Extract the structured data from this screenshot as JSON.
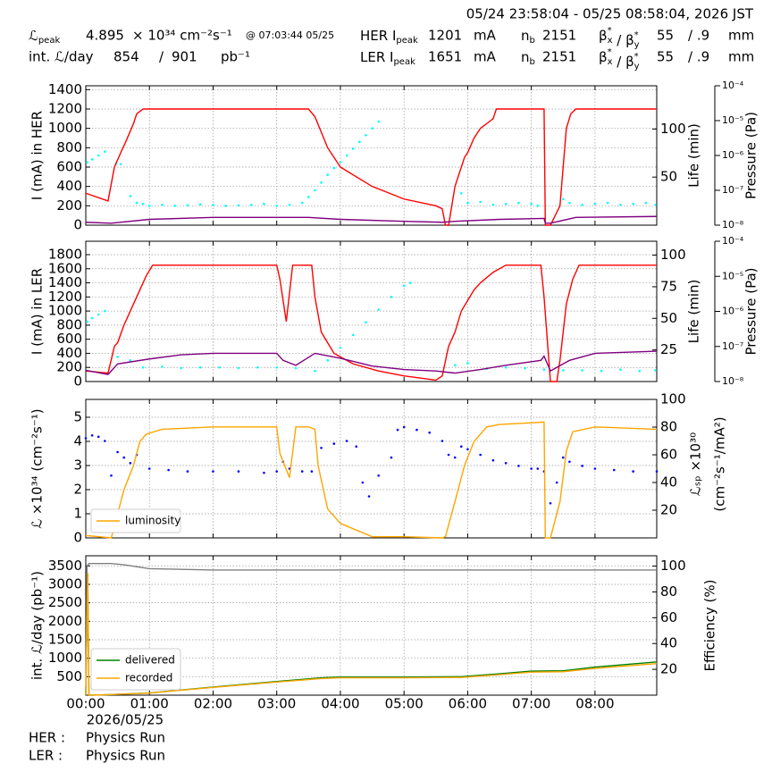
{
  "header": {
    "range": "05/24 23:58:04 - 05/25 08:58:04, 2026 JST",
    "row1": [
      {
        "text": "ℒ",
        "sub": "peak"
      },
      4.895,
      "× 10³⁴ cm⁻²s⁻¹",
      "@ 07:03:44 05/25",
      {
        "text": "HER I",
        "sub": "peak"
      },
      1201,
      "mA",
      {
        "text": "n",
        "sub": "b"
      },
      2151,
      [
        {
          "text": "β",
          "sup": "*",
          "sub": "x"
        },
        {
          "text": " / β",
          "sup": "*",
          "sub": "y"
        }
      ],
      55,
      "/ .9",
      "mm"
    ],
    "row2": [
      "int. ℒ/day",
      854,
      "/",
      901,
      "pb⁻¹",
      {
        "text": "LER I",
        "sub": "peak"
      },
      1651,
      "mA",
      {
        "text": "n",
        "sub": "b"
      },
      2151,
      [
        {
          "text": "β",
          "sup": "*",
          "sub": "x"
        },
        {
          "text": " / β",
          "sup": "*",
          "sub": "y"
        }
      ],
      55,
      "/ .9",
      "mm"
    ]
  },
  "chart_data": [
    {
      "type": "line",
      "ylabel": "I (mA) in HER",
      "y2label": "Life (min)",
      "y3label": "Pressure (Pa)",
      "xlim": [
        0,
        8.97
      ],
      "xticks": [
        0,
        1,
        2,
        3,
        4,
        5,
        6,
        7,
        8
      ],
      "ylim": [
        0,
        1440
      ],
      "yticks": [
        0,
        200,
        400,
        600,
        800,
        1000,
        1200,
        1400
      ],
      "y2lim": [
        0,
        145
      ],
      "y2ticks": [
        50,
        100
      ],
      "y3lim": [
        1e-08,
        0.0001
      ],
      "y3log": true,
      "y3ticks": [
        {
          "value": 1e-08,
          "label": "10⁻⁸"
        },
        {
          "value": 1e-07,
          "label": "10⁻⁷"
        },
        {
          "value": 1e-06,
          "label": "10⁻⁶"
        },
        {
          "value": 1e-05,
          "label": "10⁻⁵"
        },
        {
          "value": 0.0001,
          "label": "10⁻⁴"
        }
      ],
      "grid": true,
      "series": [
        {
          "type": "scatter",
          "color": "#00ffff",
          "x": [
            0.02,
            0.1,
            0.2,
            0.3,
            0.48,
            0.55,
            0.7,
            0.8,
            0.9,
            1.0,
            1.2,
            1.4,
            1.6,
            1.8,
            2.0,
            2.2,
            2.4,
            2.6,
            2.8,
            3.0,
            3.2,
            3.4,
            3.5,
            3.6,
            3.7,
            3.8,
            3.9,
            4.0,
            4.1,
            4.2,
            4.3,
            4.4,
            4.5,
            4.6,
            5.9,
            6.0,
            6.2,
            6.4,
            6.6,
            6.8,
            7.0,
            7.1,
            7.5,
            7.6,
            7.8,
            8.0,
            8.2,
            8.4,
            8.6,
            8.8,
            8.95
          ],
          "values": [
            650,
            680,
            720,
            760,
            640,
            630,
            300,
            230,
            220,
            200,
            210,
            200,
            205,
            215,
            210,
            200,
            205,
            210,
            220,
            200,
            210,
            230,
            290,
            360,
            440,
            520,
            590,
            650,
            720,
            790,
            860,
            930,
            1000,
            1070,
            330,
            230,
            240,
            210,
            220,
            230,
            220,
            200,
            270,
            230,
            210,
            220,
            230,
            210,
            220,
            230,
            210
          ]
        },
        {
          "color": "#ff0000",
          "x": [
            0,
            0.35,
            0.45,
            0.55,
            0.62,
            0.75,
            0.8,
            0.9,
            1.0,
            3.5,
            3.6,
            3.8,
            4.0,
            4.5,
            5.0,
            5.5,
            5.6,
            5.65,
            5.7,
            5.8,
            5.95,
            6.0,
            6.1,
            6.2,
            6.3,
            6.4,
            6.45,
            6.5,
            7.2,
            7.22,
            7.3,
            7.45,
            7.55,
            7.62,
            7.7,
            8.97
          ],
          "values": [
            330,
            250,
            600,
            750,
            850,
            1050,
            1150,
            1200,
            1200,
            1200,
            1120,
            800,
            600,
            400,
            270,
            200,
            170,
            0,
            0,
            400,
            700,
            750,
            900,
            1000,
            1050,
            1100,
            1200,
            1200,
            1200,
            0,
            0,
            200,
            1000,
            1150,
            1200,
            1200
          ]
        },
        {
          "color": "#800080",
          "x": [
            0,
            0.4,
            1,
            2,
            3.5,
            4,
            5,
            5.6,
            5.8,
            6.5,
            7.2,
            7.22,
            7.3,
            7.7,
            8.97
          ],
          "values": [
            30,
            20,
            60,
            80,
            80,
            60,
            40,
            30,
            40,
            60,
            70,
            20,
            20,
            80,
            90
          ]
        }
      ]
    },
    {
      "type": "line",
      "ylabel": "I (mA) in LER",
      "y2label": "Life (min)",
      "y3label": "Pressure (Pa)",
      "xlim": [
        0,
        8.97
      ],
      "xticks": [
        0,
        1,
        2,
        3,
        4,
        5,
        6,
        7,
        8
      ],
      "ylim": [
        0,
        1990
      ],
      "yticks": [
        0,
        200,
        400,
        600,
        800,
        1000,
        1200,
        1400,
        1600,
        1800
      ],
      "y2lim": [
        0,
        111
      ],
      "y2ticks": [
        25,
        50,
        75,
        100
      ],
      "y3lim": [
        1e-08,
        0.0001
      ],
      "y3log": true,
      "y3ticks": [
        {
          "value": 1e-08,
          "label": "10⁻⁸"
        },
        {
          "value": 1e-07,
          "label": "10⁻⁷"
        },
        {
          "value": 1e-06,
          "label": "10⁻⁶"
        },
        {
          "value": 1e-05,
          "label": "10⁻⁵"
        },
        {
          "value": 0.0001,
          "label": "10⁻⁴"
        }
      ],
      "grid": true,
      "series": [
        {
          "type": "scatter",
          "color": "#00ffff",
          "x": [
            0.02,
            0.1,
            0.2,
            0.3,
            0.5,
            0.7,
            0.9,
            1.2,
            1.5,
            1.8,
            2.1,
            2.4,
            2.7,
            3.0,
            3.3,
            3.6,
            3.8,
            4.0,
            4.2,
            4.4,
            4.6,
            4.8,
            5.0,
            5.1,
            5.8,
            6.0,
            6.3,
            6.6,
            6.9,
            7.2,
            7.5,
            7.8,
            8.1,
            8.4,
            8.7,
            8.95
          ],
          "values": [
            850,
            900,
            950,
            1000,
            350,
            300,
            200,
            210,
            190,
            200,
            200,
            190,
            200,
            200,
            190,
            150,
            300,
            480,
            660,
            840,
            1020,
            1200,
            1360,
            1400,
            230,
            260,
            180,
            200,
            190,
            170,
            160,
            160,
            150,
            170,
            150,
            160
          ]
        },
        {
          "color": "#ff0000",
          "x": [
            0,
            0.35,
            0.45,
            0.5,
            0.6,
            0.75,
            0.85,
            0.95,
            1.05,
            1.15,
            3.0,
            3.05,
            3.15,
            3.25,
            3.35,
            3.55,
            3.6,
            3.7,
            3.9,
            4.2,
            4.6,
            5.0,
            5.5,
            5.6,
            5.7,
            5.8,
            5.9,
            6.0,
            6.1,
            6.2,
            6.4,
            6.6,
            7.15,
            7.2,
            7.3,
            7.4,
            7.45,
            7.55,
            7.65,
            7.75,
            8.0,
            8.97
          ],
          "values": [
            150,
            120,
            500,
            550,
            800,
            1100,
            1300,
            1500,
            1650,
            1650,
            1650,
            1450,
            850,
            1650,
            1650,
            1650,
            1200,
            700,
            400,
            250,
            150,
            80,
            20,
            80,
            500,
            700,
            1000,
            1150,
            1300,
            1400,
            1550,
            1650,
            1650,
            1200,
            0,
            0,
            300,
            1100,
            1450,
            1650,
            1650,
            1650
          ]
        },
        {
          "color": "#800080",
          "x": [
            0,
            0.35,
            0.5,
            1,
            1.5,
            2,
            3,
            3.1,
            3.3,
            3.6,
            4.0,
            4.5,
            5,
            5.5,
            5.8,
            6.2,
            6.6,
            7.15,
            7.2,
            7.3,
            7.6,
            8,
            8.97
          ],
          "values": [
            160,
            100,
            250,
            320,
            380,
            400,
            400,
            300,
            230,
            400,
            330,
            220,
            170,
            150,
            120,
            170,
            230,
            300,
            360,
            150,
            300,
            400,
            430
          ]
        }
      ]
    },
    {
      "type": "line",
      "ylabel": "ℒ ×10³⁴ (cm⁻²s⁻¹)",
      "y2label": [
        "ℒₛₚ ×10³⁰",
        "(cm⁻²s⁻¹/mA²)"
      ],
      "xlim": [
        0,
        8.97
      ],
      "xticks": [
        0,
        1,
        2,
        3,
        4,
        5,
        6,
        7,
        8
      ],
      "ylim": [
        0,
        5.74
      ],
      "yticks": [
        0,
        1,
        2,
        3,
        4,
        5
      ],
      "y2lim": [
        0,
        100
      ],
      "y2ticks": [
        20,
        40,
        60,
        80,
        100
      ],
      "grid": true,
      "legend": "lower left",
      "series": [
        {
          "type": "scatter",
          "axis": "y2",
          "color": "#0000ff",
          "x": [
            0,
            0.1,
            0.2,
            0.3,
            0.4,
            0.5,
            0.6,
            0.7,
            0.8,
            1.0,
            1.3,
            1.6,
            2.0,
            2.4,
            2.8,
            3.0,
            3.1,
            3.2,
            3.4,
            3.55,
            3.7,
            3.9,
            4.1,
            4.25,
            4.35,
            4.45,
            4.6,
            4.8,
            4.9,
            5.0,
            5.2,
            5.4,
            5.6,
            5.7,
            5.8,
            5.9,
            6.0,
            6.2,
            6.4,
            6.6,
            6.8,
            7.0,
            7.1,
            7.2,
            7.3,
            7.4,
            7.5,
            7.6,
            7.8,
            8.0,
            8.3,
            8.6,
            8.97
          ],
          "values": [
            72,
            74,
            73,
            70,
            45,
            62,
            58,
            54,
            60,
            50,
            49,
            48,
            48,
            48,
            47,
            48,
            55,
            50,
            48,
            48,
            65,
            68,
            70,
            66,
            40,
            30,
            45,
            58,
            78,
            80,
            78,
            76,
            70,
            60,
            58,
            66,
            64,
            60,
            56,
            54,
            52,
            50,
            50,
            48,
            25,
            40,
            58,
            55,
            52,
            50,
            49,
            48,
            48
          ]
        },
        {
          "name": "luminosity",
          "color": "#ffa500",
          "x": [
            0,
            0.4,
            0.45,
            0.6,
            0.75,
            0.85,
            0.95,
            1.2,
            2,
            3,
            3.05,
            3.2,
            3.3,
            3.5,
            3.6,
            3.65,
            3.8,
            4.0,
            4.5,
            5,
            5.6,
            5.65,
            5.8,
            5.95,
            6.1,
            6.3,
            6.5,
            7.2,
            7.22,
            7.3,
            7.45,
            7.55,
            7.65,
            8,
            8.97
          ],
          "values": [
            0.1,
            0,
            0.5,
            2.0,
            3.0,
            4.0,
            4.3,
            4.5,
            4.6,
            4.6,
            3.5,
            2.5,
            4.6,
            4.6,
            4.5,
            3.0,
            1.2,
            0.6,
            0.05,
            0.05,
            0,
            0.05,
            1.5,
            3.0,
            4.0,
            4.6,
            4.7,
            4.8,
            0,
            0,
            1.5,
            3.6,
            4.4,
            4.6,
            4.5
          ]
        }
      ]
    },
    {
      "type": "line",
      "ylabel": "int. ℒ/day (pb⁻¹)",
      "y2label": "Efficiency (%)",
      "xlim": [
        0,
        8.97
      ],
      "xticks": [
        {
          "value": 0,
          "label": "00:00"
        },
        {
          "value": 1,
          "label": "01:00"
        },
        {
          "value": 2,
          "label": "02:00"
        },
        {
          "value": 3,
          "label": "03:00"
        },
        {
          "value": 4,
          "label": "04:00"
        },
        {
          "value": 5,
          "label": "05:00"
        },
        {
          "value": 6,
          "label": "06:00"
        },
        {
          "value": 7,
          "label": "07:00"
        },
        {
          "value": 8,
          "label": "08:00"
        }
      ],
      "xlabel": "2026/05/25",
      "ylim": [
        0,
        3774
      ],
      "yticks": [
        500,
        1000,
        1500,
        2000,
        2500,
        3000,
        3500
      ],
      "y2lim": [
        0,
        108
      ],
      "y2ticks": [
        20,
        40,
        60,
        80,
        100
      ],
      "grid": true,
      "legend": "lower left",
      "series": [
        {
          "axis": "y2",
          "color": "#808080",
          "x": [
            0,
            0.02,
            0.05,
            0.4,
            0.6,
            1.0,
            2,
            3,
            4,
            5,
            6,
            7,
            8.97
          ],
          "values": [
            0,
            100,
            102,
            102,
            101,
            98,
            97,
            97,
            97,
            97,
            97,
            97,
            97
          ]
        },
        {
          "name": "delivered",
          "color": "#008000",
          "x": [
            0,
            0.03,
            0.05,
            0.3,
            1,
            2,
            3,
            3.7,
            4,
            5,
            5.9,
            6.5,
            7.0,
            7.5,
            8,
            8.97
          ],
          "values": [
            0,
            3300,
            0,
            10,
            60,
            220,
            370,
            470,
            490,
            490,
            500,
            580,
            650,
            660,
            760,
            901
          ]
        },
        {
          "name": "recorded",
          "color": "#ffa500",
          "x": [
            0,
            0.03,
            0.05,
            0.3,
            1,
            2,
            3,
            3.7,
            4,
            5,
            5.9,
            6.5,
            7.0,
            7.5,
            8,
            8.97
          ],
          "values": [
            0,
            3300,
            0,
            10,
            55,
            210,
            355,
            450,
            470,
            470,
            480,
            555,
            625,
            635,
            725,
            854
          ]
        }
      ]
    }
  ],
  "footer": [
    [
      "HER :",
      "Physics Run"
    ],
    [
      "LER :",
      "Physics Run"
    ]
  ]
}
